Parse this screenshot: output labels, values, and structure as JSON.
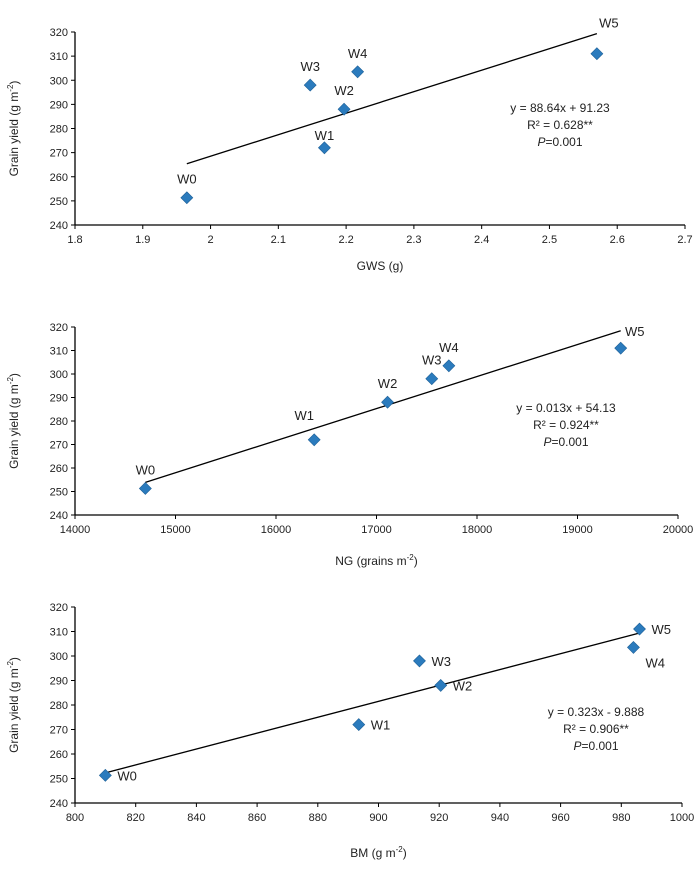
{
  "chart_data": [
    {
      "type": "scatter",
      "xlabel": "GWS (g)",
      "ylabel": "Grain yield (g m-2)",
      "xlim": [
        1.8,
        2.7
      ],
      "xticks": [
        "1.8",
        "1.9",
        "2",
        "2.1",
        "2.2",
        "2.3",
        "2.4",
        "2.5",
        "2.6",
        "2.7"
      ],
      "ylim": [
        240,
        320
      ],
      "yticks": [
        "240",
        "250",
        "260",
        "270",
        "280",
        "290",
        "300",
        "310",
        "320"
      ],
      "points": [
        {
          "label": "W0",
          "x": 1.965,
          "y": 251.3,
          "label_pos": "above"
        },
        {
          "label": "W1",
          "x": 2.168,
          "y": 272,
          "label_pos": "above"
        },
        {
          "label": "W2",
          "x": 2.197,
          "y": 288,
          "label_pos": "above"
        },
        {
          "label": "W3",
          "x": 2.147,
          "y": 298,
          "label_pos": "above"
        },
        {
          "label": "W4",
          "x": 2.217,
          "y": 303.5,
          "label_pos": "above"
        },
        {
          "label": "W5",
          "x": 2.57,
          "y": 311,
          "label_pos": "upper-right"
        }
      ],
      "trendline": true,
      "equation": "y = 88.64x + 91.23",
      "r2": "R² = 0.628**",
      "p_label": "P",
      "p_value": "=0.001",
      "marker_color": "#2b7bbd",
      "grid": false
    },
    {
      "type": "scatter",
      "xlabel": "NG (grains m-2)",
      "ylabel": "Grain yield (g m-2)",
      "xlim": [
        14000,
        20000
      ],
      "xticks": [
        "14000",
        "15000",
        "16000",
        "17000",
        "18000",
        "19000",
        "20000"
      ],
      "ylim": [
        240,
        320
      ],
      "yticks": [
        "240",
        "250",
        "260",
        "270",
        "280",
        "290",
        "300",
        "310",
        "320"
      ],
      "points": [
        {
          "label": "W0",
          "x": 14700,
          "y": 251.3,
          "label_pos": "above"
        },
        {
          "label": "W1",
          "x": 16380,
          "y": 272,
          "label_pos": "upper-left"
        },
        {
          "label": "W2",
          "x": 17110,
          "y": 288,
          "label_pos": "above"
        },
        {
          "label": "W3",
          "x": 17550,
          "y": 298,
          "label_pos": "above"
        },
        {
          "label": "W4",
          "x": 17720,
          "y": 303.5,
          "label_pos": "above"
        },
        {
          "label": "W5",
          "x": 19430,
          "y": 311,
          "label_pos": "upper-right"
        }
      ],
      "trendline": true,
      "equation": "y = 0.013x + 54.13",
      "r2": "R² = 0.924**",
      "p_label": "P",
      "p_value": "=0.001",
      "marker_color": "#2b7bbd",
      "grid": false
    },
    {
      "type": "scatter",
      "xlabel": "BM (g m-2)",
      "ylabel": "Grain yield (g m-2)",
      "xlim": [
        800,
        1000
      ],
      "xticks": [
        "800",
        "820",
        "840",
        "860",
        "880",
        "900",
        "920",
        "940",
        "960",
        "980",
        "1000"
      ],
      "ylim": [
        240,
        320
      ],
      "yticks": [
        "240",
        "250",
        "260",
        "270",
        "280",
        "290",
        "300",
        "310",
        "320"
      ],
      "points": [
        {
          "label": "W0",
          "x": 810,
          "y": 251.3,
          "label_pos": "right"
        },
        {
          "label": "W1",
          "x": 893.5,
          "y": 272,
          "label_pos": "right"
        },
        {
          "label": "W2",
          "x": 920.5,
          "y": 288,
          "label_pos": "right"
        },
        {
          "label": "W3",
          "x": 913.5,
          "y": 298,
          "label_pos": "right"
        },
        {
          "label": "W4",
          "x": 984,
          "y": 303.5,
          "label_pos": "lower-right"
        },
        {
          "label": "W5",
          "x": 986,
          "y": 311,
          "label_pos": "right"
        }
      ],
      "trendline": true,
      "equation": "y = 0.323x - 9.888",
      "r2": "R² = 0.906**",
      "p_label": "P",
      "p_value": "=0.001",
      "marker_color": "#2b7bbd",
      "grid": false
    }
  ]
}
